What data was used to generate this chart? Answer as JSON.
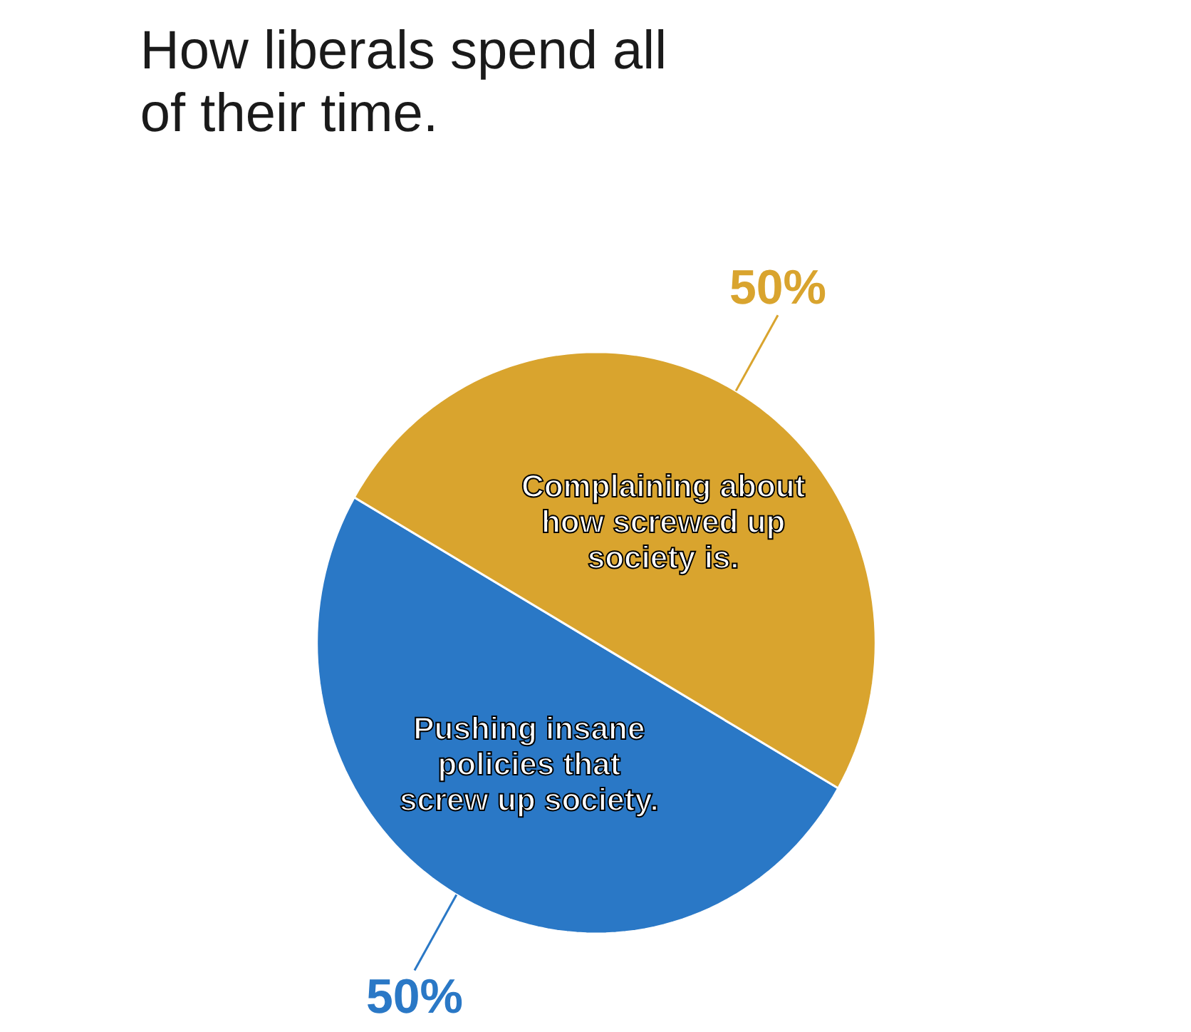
{
  "chart_data": {
    "type": "pie",
    "title": "How liberals spend all of their time.",
    "categories": [
      "Pushing insane policies that screw up society.",
      "Complaining about how screwed up society is."
    ],
    "values": [
      50,
      50
    ],
    "colors": [
      "#2a78c6",
      "#d9a42e"
    ],
    "value_labels": [
      "50%",
      "50%"
    ]
  }
}
